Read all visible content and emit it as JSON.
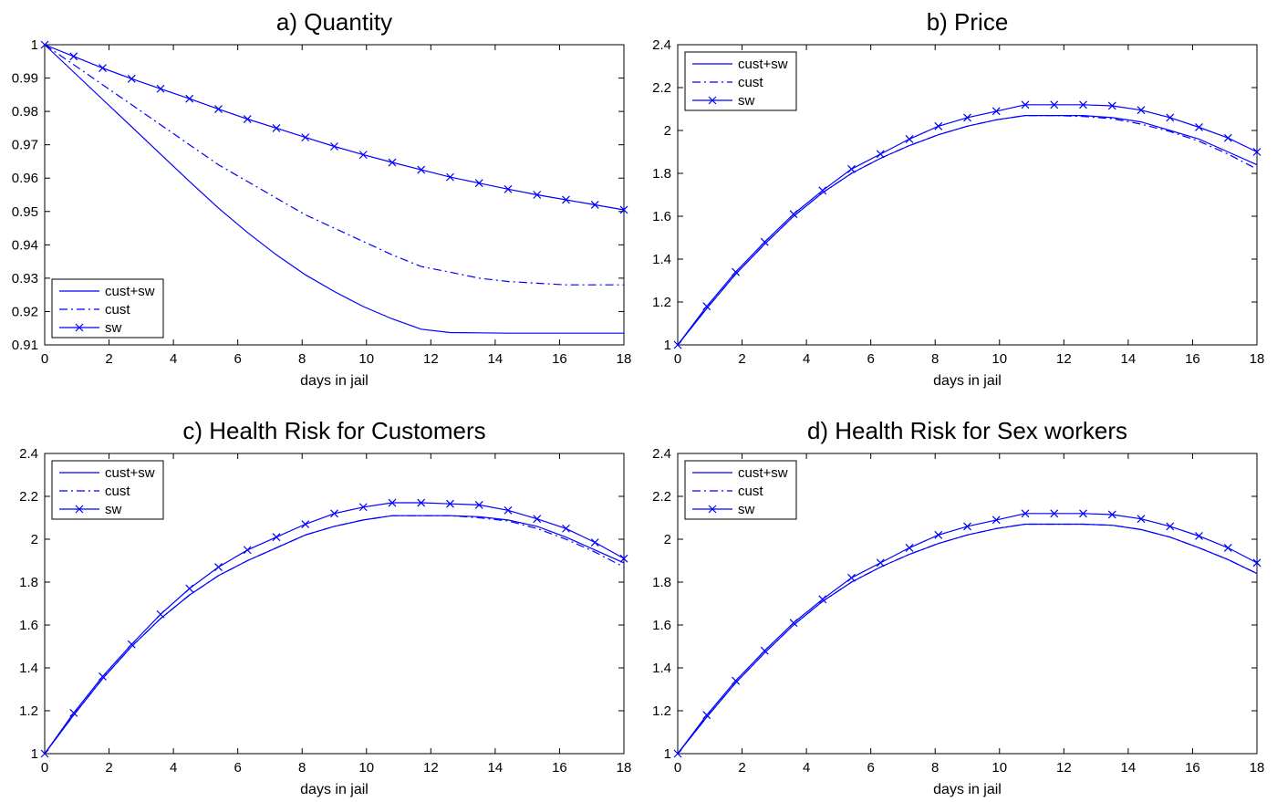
{
  "chart_data": [
    {
      "type": "line",
      "title": "a) Quantity",
      "xlabel": "days in jail",
      "ylabel": "",
      "xlim": [
        0,
        18
      ],
      "ylim": [
        0.91,
        1
      ],
      "xticks": [
        0,
        2,
        4,
        6,
        8,
        10,
        12,
        14,
        16,
        18
      ],
      "yticks": [
        0.91,
        0.92,
        0.93,
        0.94,
        0.95,
        0.96,
        0.97,
        0.98,
        0.99,
        1
      ],
      "grid": false,
      "legend_position": "bottom-left",
      "x": [
        0,
        0.9,
        1.8,
        2.7,
        3.6,
        4.5,
        5.4,
        6.3,
        7.2,
        8.1,
        9.0,
        9.9,
        10.8,
        11.7,
        12.6,
        13.5,
        14.4,
        15.3,
        16.2,
        17.1,
        18.0
      ],
      "series": [
        {
          "name": "cust+sw",
          "style": "solid",
          "values": [
            1.0,
            0.9918,
            0.9836,
            0.9754,
            0.9672,
            0.959,
            0.951,
            0.9437,
            0.937,
            0.931,
            0.926,
            0.9215,
            0.9178,
            0.9147,
            0.9137,
            0.9136,
            0.9135,
            0.9135,
            0.9135,
            0.9135,
            0.9135
          ]
        },
        {
          "name": "cust",
          "style": "dashdot",
          "values": [
            1.0,
            0.994,
            0.988,
            0.982,
            0.976,
            0.97,
            0.964,
            0.959,
            0.954,
            0.949,
            0.945,
            0.941,
            0.937,
            0.9335,
            0.9318,
            0.93,
            0.929,
            0.9285,
            0.928,
            0.928,
            0.928
          ]
        },
        {
          "name": "sw",
          "style": "solid-x",
          "values": [
            1.0,
            0.9965,
            0.993,
            0.9898,
            0.9868,
            0.9838,
            0.9807,
            0.9777,
            0.975,
            0.9722,
            0.9695,
            0.967,
            0.9647,
            0.9625,
            0.9603,
            0.9585,
            0.9567,
            0.955,
            0.9535,
            0.952,
            0.9505
          ]
        }
      ]
    },
    {
      "type": "line",
      "title": "b) Price",
      "xlabel": "days in jail",
      "ylabel": "",
      "xlim": [
        0,
        18
      ],
      "ylim": [
        1,
        2.4
      ],
      "xticks": [
        0,
        2,
        4,
        6,
        8,
        10,
        12,
        14,
        16,
        18
      ],
      "yticks": [
        1,
        1.2,
        1.4,
        1.6,
        1.8,
        2,
        2.2,
        2.4
      ],
      "grid": false,
      "legend_position": "top-left",
      "x": [
        0,
        0.9,
        1.8,
        2.7,
        3.6,
        4.5,
        5.4,
        6.3,
        7.2,
        8.1,
        9.0,
        9.9,
        10.8,
        11.7,
        12.6,
        13.5,
        14.4,
        15.3,
        16.2,
        17.1,
        18.0
      ],
      "series": [
        {
          "name": "cust+sw",
          "style": "solid",
          "values": [
            1.0,
            1.17,
            1.33,
            1.47,
            1.6,
            1.71,
            1.8,
            1.87,
            1.93,
            1.98,
            2.02,
            2.05,
            2.07,
            2.07,
            2.07,
            2.06,
            2.04,
            2.0,
            1.96,
            1.9,
            1.84
          ]
        },
        {
          "name": "cust",
          "style": "dashdot",
          "values": [
            1.0,
            1.17,
            1.33,
            1.47,
            1.6,
            1.71,
            1.8,
            1.87,
            1.93,
            1.98,
            2.02,
            2.05,
            2.07,
            2.07,
            2.065,
            2.055,
            2.03,
            1.995,
            1.95,
            1.89,
            1.82
          ]
        },
        {
          "name": "sw",
          "style": "solid-x",
          "values": [
            1.0,
            1.18,
            1.34,
            1.48,
            1.61,
            1.72,
            1.82,
            1.89,
            1.96,
            2.02,
            2.06,
            2.09,
            2.12,
            2.12,
            2.12,
            2.115,
            2.095,
            2.06,
            2.015,
            1.965,
            1.9
          ]
        }
      ]
    },
    {
      "type": "line",
      "title": "c) Health Risk for Customers",
      "xlabel": "days in jail",
      "ylabel": "",
      "xlim": [
        0,
        18
      ],
      "ylim": [
        1,
        2.4
      ],
      "xticks": [
        0,
        2,
        4,
        6,
        8,
        10,
        12,
        14,
        16,
        18
      ],
      "yticks": [
        1,
        1.2,
        1.4,
        1.6,
        1.8,
        2,
        2.2,
        2.4
      ],
      "grid": false,
      "legend_position": "top-left",
      "x": [
        0,
        0.9,
        1.8,
        2.7,
        3.6,
        4.5,
        5.4,
        6.3,
        7.2,
        8.1,
        9.0,
        9.9,
        10.8,
        11.7,
        12.6,
        13.5,
        14.4,
        15.3,
        16.2,
        17.1,
        18.0
      ],
      "series": [
        {
          "name": "cust+sw",
          "style": "solid",
          "values": [
            1.0,
            1.18,
            1.35,
            1.5,
            1.63,
            1.74,
            1.83,
            1.9,
            1.96,
            2.02,
            2.06,
            2.09,
            2.11,
            2.11,
            2.11,
            2.105,
            2.09,
            2.06,
            2.01,
            1.95,
            1.89
          ]
        },
        {
          "name": "cust",
          "style": "dashdot",
          "values": [
            1.0,
            1.18,
            1.35,
            1.5,
            1.63,
            1.74,
            1.83,
            1.9,
            1.96,
            2.02,
            2.06,
            2.09,
            2.11,
            2.11,
            2.11,
            2.1,
            2.085,
            2.05,
            2.0,
            1.94,
            1.87
          ]
        },
        {
          "name": "sw",
          "style": "solid-x",
          "values": [
            1.0,
            1.19,
            1.36,
            1.51,
            1.65,
            1.77,
            1.87,
            1.95,
            2.01,
            2.07,
            2.12,
            2.15,
            2.17,
            2.17,
            2.165,
            2.16,
            2.135,
            2.095,
            2.05,
            1.985,
            1.91
          ]
        }
      ]
    },
    {
      "type": "line",
      "title": "d) Health Risk for Sex workers",
      "xlabel": "days in jail",
      "ylabel": "",
      "xlim": [
        0,
        18
      ],
      "ylim": [
        1,
        2.4
      ],
      "xticks": [
        0,
        2,
        4,
        6,
        8,
        10,
        12,
        14,
        16,
        18
      ],
      "yticks": [
        1,
        1.2,
        1.4,
        1.6,
        1.8,
        2,
        2.2,
        2.4
      ],
      "grid": false,
      "legend_position": "top-left",
      "x": [
        0,
        0.9,
        1.8,
        2.7,
        3.6,
        4.5,
        5.4,
        6.3,
        7.2,
        8.1,
        9.0,
        9.9,
        10.8,
        11.7,
        12.6,
        13.5,
        14.4,
        15.3,
        16.2,
        17.1,
        18.0
      ],
      "series": [
        {
          "name": "cust+sw",
          "style": "solid",
          "values": [
            1.0,
            1.17,
            1.33,
            1.47,
            1.6,
            1.71,
            1.8,
            1.87,
            1.93,
            1.98,
            2.02,
            2.05,
            2.07,
            2.07,
            2.07,
            2.065,
            2.045,
            2.01,
            1.96,
            1.905,
            1.84
          ]
        },
        {
          "name": "cust",
          "style": "dashdot",
          "values": [
            1.0,
            1.17,
            1.33,
            1.47,
            1.6,
            1.71,
            1.8,
            1.87,
            1.93,
            1.98,
            2.02,
            2.05,
            2.07,
            2.07,
            2.07,
            2.065,
            2.045,
            2.01,
            1.96,
            1.905,
            1.84
          ]
        },
        {
          "name": "sw",
          "style": "solid-x",
          "values": [
            1.0,
            1.18,
            1.34,
            1.48,
            1.61,
            1.72,
            1.82,
            1.89,
            1.96,
            2.02,
            2.06,
            2.09,
            2.12,
            2.12,
            2.12,
            2.115,
            2.095,
            2.06,
            2.015,
            1.96,
            1.89
          ]
        }
      ]
    }
  ],
  "colors": {
    "line": "#0000ff",
    "axis": "#000000",
    "background": "#ffffff"
  }
}
